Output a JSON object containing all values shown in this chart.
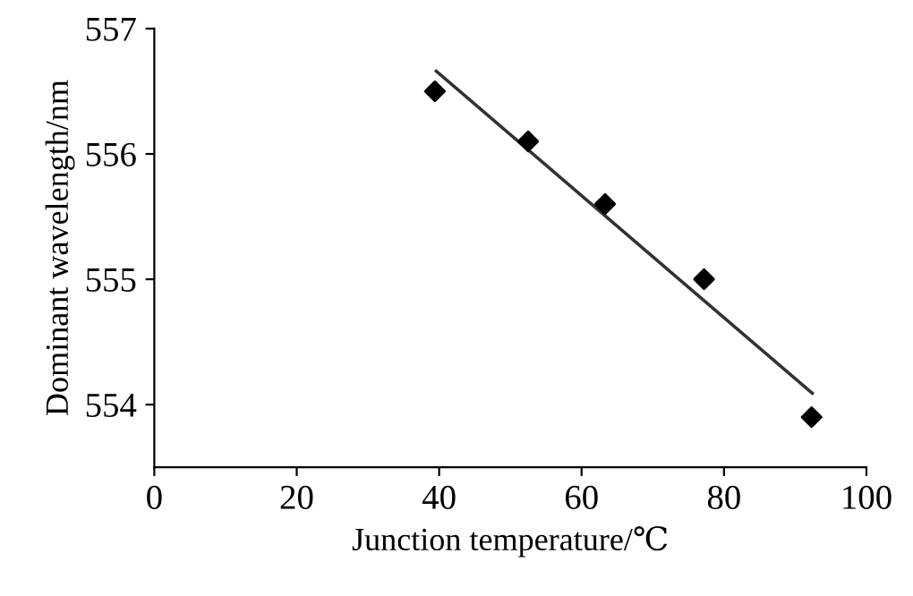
{
  "chart_data": {
    "type": "scatter",
    "xlabel": "Junction temperature/℃",
    "ylabel": "Dominant wavelength/nm",
    "series": [
      {
        "marker": "diamond",
        "color": "#000000",
        "x": [
          39.4,
          52.5,
          63.3,
          77.2,
          92.3
        ],
        "values": [
          556.5,
          556.1,
          555.6,
          555.0,
          553.9
        ]
      },
      {
        "type": "line",
        "marker": "none",
        "color": "#333333",
        "x": [
          39.6,
          92.4
        ],
        "values": [
          556.66,
          554.09
        ]
      }
    ],
    "xlim": [
      0,
      100
    ],
    "xticks": [
      0,
      20,
      40,
      60,
      80,
      100
    ],
    "ylim": [
      553.5,
      557
    ],
    "yticks": [
      554,
      555,
      556,
      557
    ],
    "grid": false,
    "legend": false
  }
}
